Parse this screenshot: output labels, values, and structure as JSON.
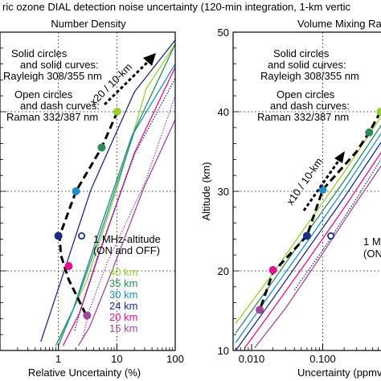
{
  "figure_title": "ric ozone DIAL  detection noise uncertainty (120-min integration, 1-km vertic",
  "colors": {
    "40": "#9acd32",
    "35": "#2e8b57",
    "30": "#1b8fc8",
    "24": "#1d2b83",
    "20": "#e0138c",
    "15": "#a0479a",
    "trend": "#000000"
  },
  "chart_data": [
    {
      "type": "line",
      "title": "Number Density",
      "xlabel": "Relative Uncertainty (%)",
      "ylabel": "",
      "x_scale": "log",
      "xlim": [
        0.1,
        100
      ],
      "ylim": [
        10,
        50
      ],
      "x_ticks": [
        "1",
        "10",
        "100"
      ],
      "y_ticks": [],
      "grid": "dotted",
      "annotations": {
        "solid_note": [
          "Solid circles",
          "and solid curves:",
          "Rayleigh 308/355 nm"
        ],
        "open_note": [
          "Open circles",
          "and dash curves:",
          "Raman 332/387 nm"
        ],
        "trend_label": "x20 / 10-km",
        "mhz_note": [
          "1 MHz-altitude",
          "(ON and OFF)"
        ]
      },
      "legend_position": "bottom-right",
      "legend": [
        "40 km",
        "35 km",
        "30 km",
        "24 km",
        "20 km",
        "15 km"
      ],
      "series": [
        {
          "name": "40 km",
          "color_key": "40",
          "style": "solid",
          "x": [
            1.0,
            3.1,
            10.2,
            32,
            100
          ],
          "y": [
            11.1,
            18.9,
            30.5,
            42.9,
            48.5
          ]
        },
        {
          "name": "35 km",
          "color_key": "35",
          "style": "solid",
          "x": [
            0.9,
            1.8,
            5.5,
            18,
            100
          ],
          "y": [
            10.6,
            15.2,
            25.9,
            36.9,
            48.5
          ]
        },
        {
          "name": "30 km",
          "color_key": "30",
          "style": "solid",
          "x": [
            1.0,
            2.0,
            4.8,
            20,
            100
          ],
          "y": [
            10.6,
            16.0,
            23.8,
            37.5,
            46.0
          ]
        },
        {
          "name": "24 km",
          "color_key": "24",
          "style": "solid",
          "x": [
            0.5,
            1.0,
            3.6,
            20,
            100
          ],
          "y": [
            11.1,
            17.8,
            30.2,
            42.5,
            49.0
          ]
        },
        {
          "name": "20 km",
          "color_key": "20",
          "style": "solid",
          "x": [
            1.2,
            2.3,
            5.0,
            20,
            100
          ],
          "y": [
            10.6,
            14.7,
            22.2,
            34.8,
            45.6
          ]
        },
        {
          "name": "15 km",
          "color_key": "15",
          "style": "solid",
          "x": [
            2.2,
            3.4,
            7.8,
            30,
            100
          ],
          "y": [
            10.6,
            12.9,
            19.5,
            30.7,
            39.0
          ]
        },
        {
          "name": "Raman 24 km",
          "color_key": "24",
          "style": "dotted",
          "x": [
            1.9,
            2.5,
            4.6,
            20,
            100
          ],
          "y": [
            12.5,
            15.6,
            21.6,
            34.6,
            44.2
          ]
        },
        {
          "name": "Raman 15 km",
          "color_key": "15",
          "style": "dotted",
          "x": [
            2.6,
            3.4,
            6.8,
            30,
            100
          ],
          "y": [
            11.5,
            15.1,
            21.0,
            31.0,
            42.0
          ]
        }
      ],
      "trend": {
        "x": [
          10.2,
          5.5,
          2.0,
          1.05,
          1.1,
          1.5,
          3.0
        ],
        "y": [
          40.0,
          35.5,
          30.0,
          24.4,
          22.0,
          18.9,
          14.4
        ]
      },
      "markers": [
        {
          "color_key": "40",
          "x": 10.2,
          "y": 40.0,
          "open": false
        },
        {
          "color_key": "35",
          "x": 5.5,
          "y": 35.5,
          "open": false
        },
        {
          "color_key": "30",
          "x": 2.0,
          "y": 30.0,
          "open": false
        },
        {
          "color_key": "24",
          "x": 1.0,
          "y": 24.4,
          "open": false
        },
        {
          "color_key": "24",
          "x": 2.5,
          "y": 24.4,
          "open": true
        },
        {
          "color_key": "20",
          "x": 1.5,
          "y": 20.6,
          "open": false
        },
        {
          "color_key": "15",
          "x": 3.1,
          "y": 14.4,
          "open": false
        }
      ]
    },
    {
      "type": "line",
      "title": "Volume Mixing Ra",
      "xlabel": "Uncertainty (ppmv",
      "ylabel": "Altitude (km)",
      "x_scale": "log",
      "xlim": [
        0.0055,
        1
      ],
      "ylim": [
        10,
        50
      ],
      "x_ticks": [
        "0.010",
        "0.100"
      ],
      "y_ticks": [
        "10",
        "20",
        "30",
        "40",
        "50"
      ],
      "grid": "dotted",
      "annotations": {
        "solid_note": [
          "Solid circles",
          "and solid curves:",
          "Rayleigh 308/355 nm"
        ],
        "open_note": [
          "Open circles",
          "and dash curves:",
          "Raman 332/387 nm"
        ],
        "trend_label": "x10 / 10-km",
        "mhz_note": [
          "1 M",
          "(ON"
        ]
      },
      "series": [
        {
          "name": "40 km",
          "color_key": "40",
          "style": "solid",
          "x": [
            0.006,
            0.02,
            0.06,
            0.2,
            0.7
          ],
          "y": [
            13.4,
            19.7,
            25.8,
            32.4,
            39.7
          ]
        },
        {
          "name": "35 km",
          "color_key": "35",
          "style": "solid",
          "x": [
            0.006,
            0.02,
            0.06,
            0.2,
            0.7
          ],
          "y": [
            12.2,
            18.7,
            24.8,
            31.3,
            38.6
          ]
        },
        {
          "name": "30 km",
          "color_key": "30",
          "style": "solid",
          "x": [
            0.006,
            0.02,
            0.06,
            0.2,
            0.7
          ],
          "y": [
            11.0,
            17.6,
            23.6,
            30.3,
            37.6
          ]
        },
        {
          "name": "24 km",
          "color_key": "24",
          "style": "solid",
          "x": [
            0.006,
            0.02,
            0.06,
            0.2,
            0.7
          ],
          "y": [
            10.0,
            16.5,
            22.6,
            29.2,
            36.5
          ]
        },
        {
          "name": "20 km",
          "color_key": "20",
          "style": "solid",
          "x": [
            0.008,
            0.02,
            0.06,
            0.2,
            0.7
          ],
          "y": [
            10.3,
            15.2,
            21.2,
            27.9,
            35.2
          ]
        },
        {
          "name": "15 km",
          "color_key": "15",
          "style": "solid",
          "x": [
            0.011,
            0.03,
            0.08,
            0.25,
            0.7
          ],
          "y": [
            10.3,
            15.3,
            20.9,
            27.6,
            33.5
          ]
        },
        {
          "name": "Raman 24 km",
          "color_key": "24",
          "style": "dotted",
          "x": [
            0.04,
            0.1,
            0.3,
            0.7
          ],
          "y": [
            17.6,
            22.6,
            29.1,
            34.4
          ]
        }
      ],
      "trend": {
        "x": [
          0.65,
          0.45,
          0.3,
          0.1,
          0.06,
          0.02,
          0.013
        ],
        "y": [
          40.0,
          37.4,
          35.0,
          30.2,
          24.4,
          19.8,
          15.1
        ]
      },
      "markers": [
        {
          "color_key": "40",
          "x": 0.65,
          "y": 40.0,
          "open": false
        },
        {
          "color_key": "35",
          "x": 0.45,
          "y": 37.4,
          "open": false
        },
        {
          "color_key": "30",
          "x": 0.1,
          "y": 30.2,
          "open": false
        },
        {
          "color_key": "24",
          "x": 0.06,
          "y": 24.4,
          "open": false
        },
        {
          "color_key": "24",
          "x": 0.13,
          "y": 24.4,
          "open": true
        },
        {
          "color_key": "20",
          "x": 0.02,
          "y": 20.1,
          "open": false
        },
        {
          "color_key": "15",
          "x": 0.013,
          "y": 15.1,
          "open": false
        }
      ]
    }
  ]
}
